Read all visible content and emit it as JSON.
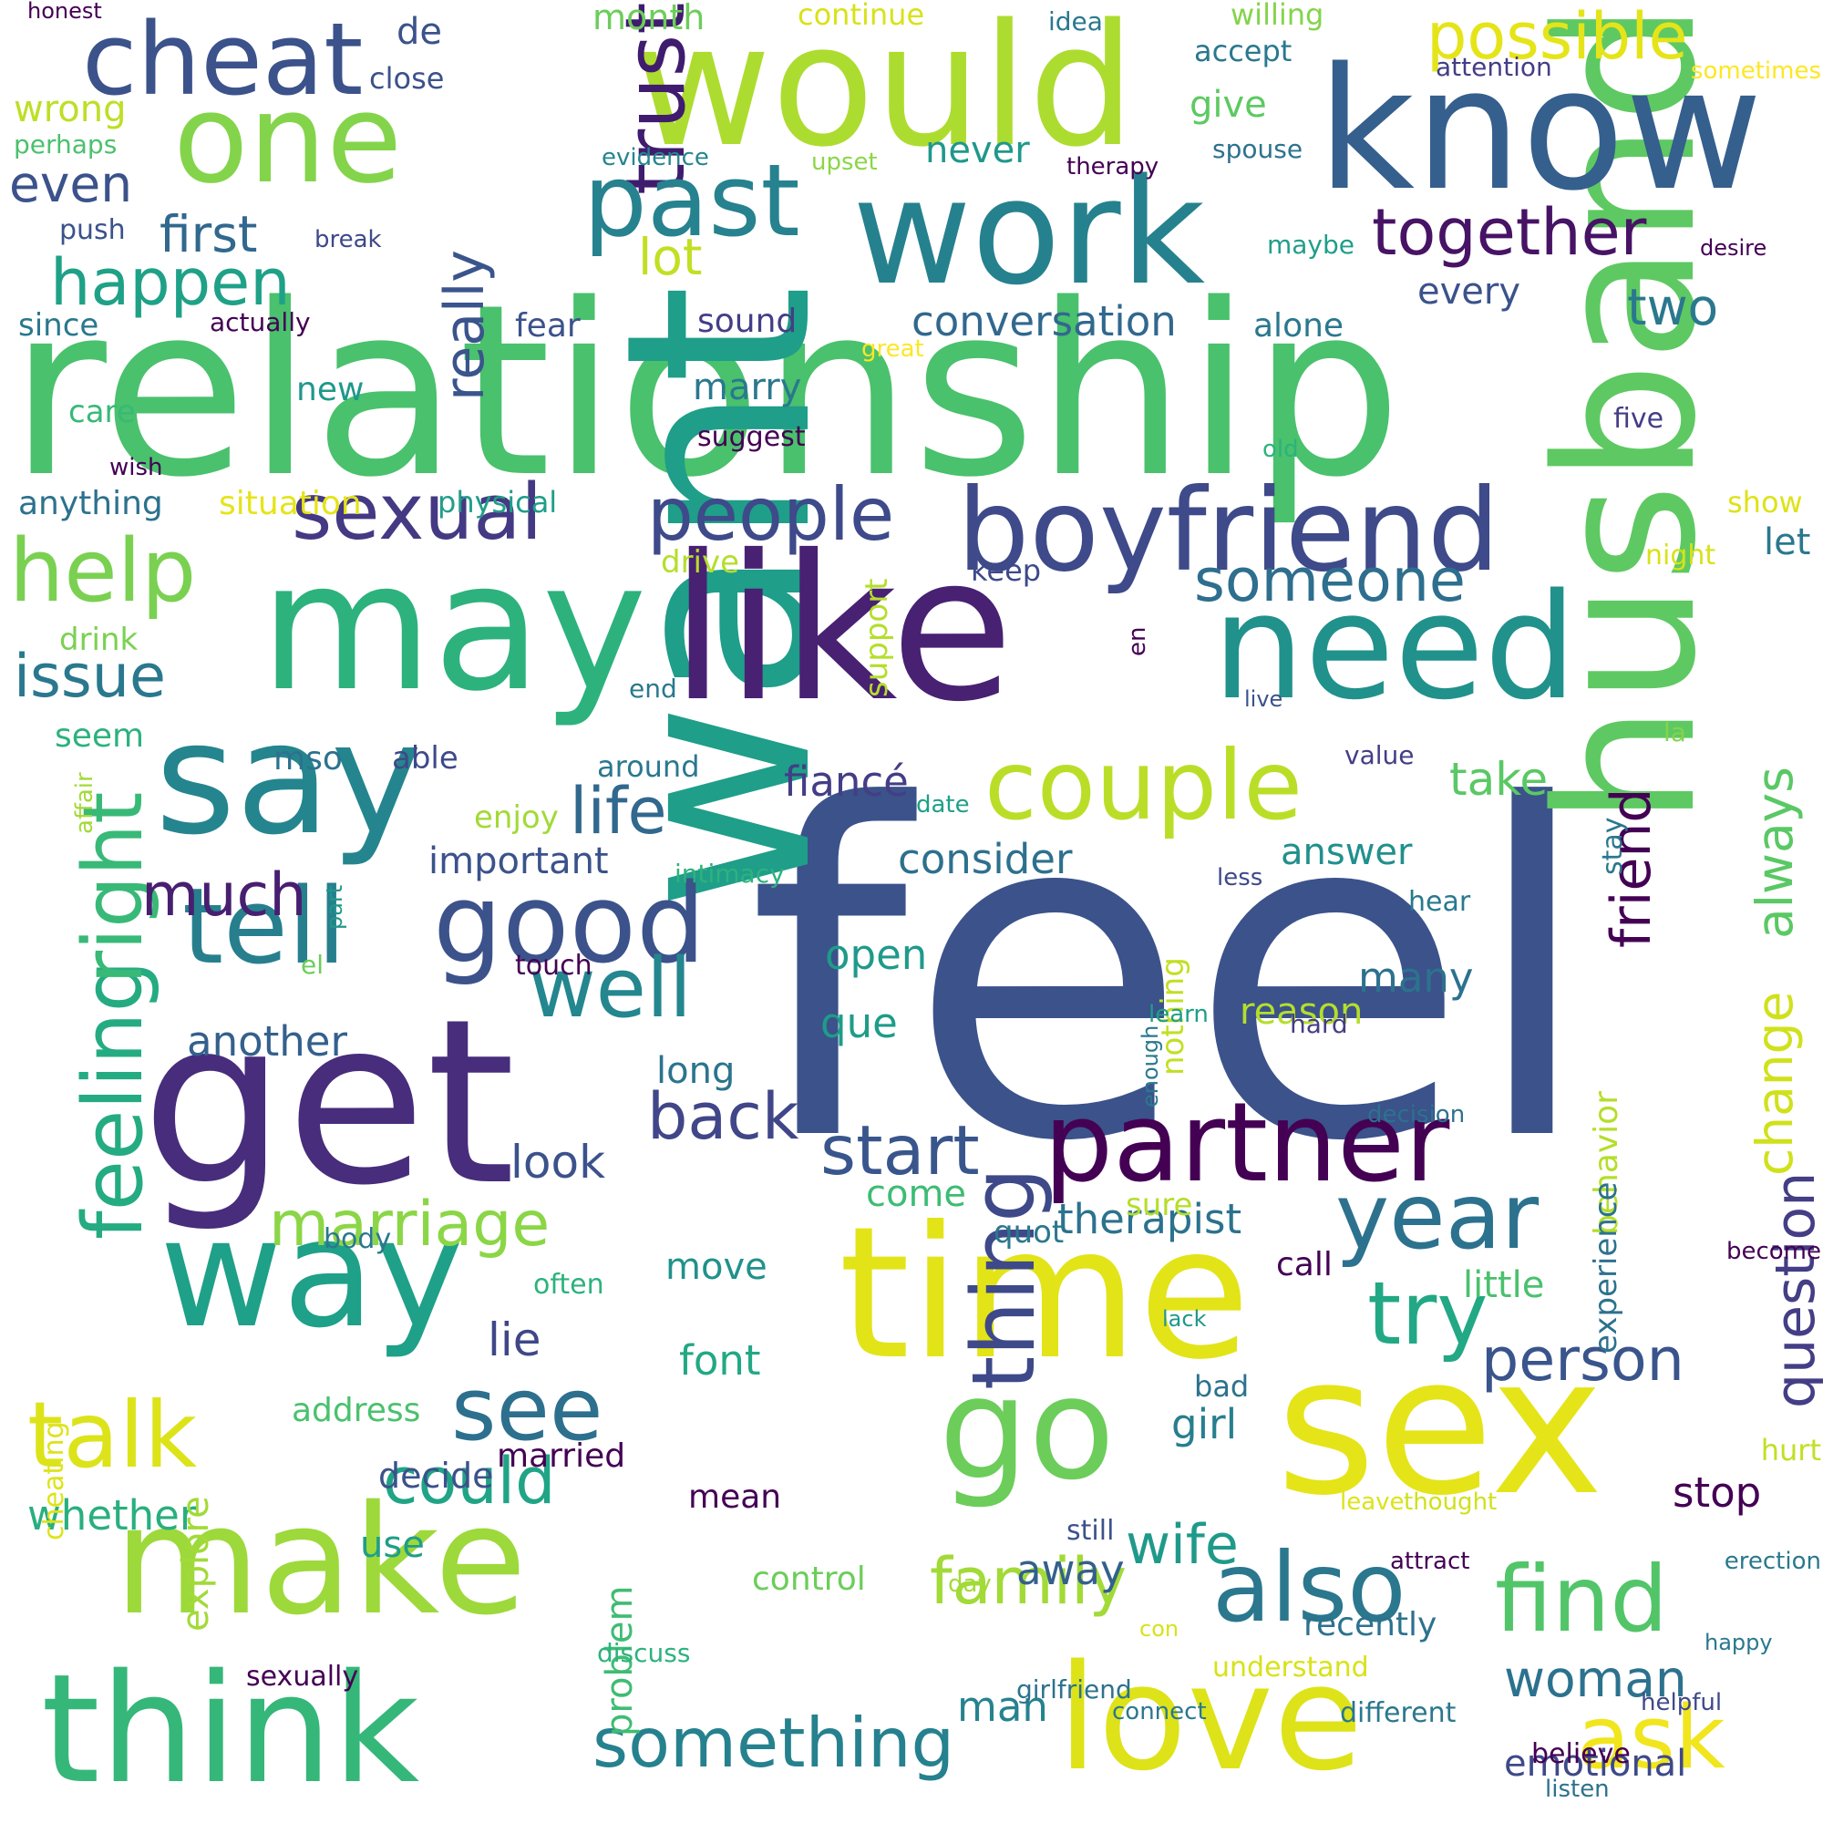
{
  "words": [
    {
      "text": "feel",
      "color": "#3b528b"
    },
    {
      "text": "relationship",
      "color": "#4ac16d"
    },
    {
      "text": "want",
      "color": "#1f9e89"
    },
    {
      "text": "like",
      "color": "#482173"
    },
    {
      "text": "get",
      "color": "#472d7b"
    },
    {
      "text": "time",
      "color": "#e2e418"
    },
    {
      "text": "husband",
      "color": "#5ec962"
    },
    {
      "text": "sex",
      "color": "#e5e419"
    },
    {
      "text": "may",
      "color": "#2db27d"
    },
    {
      "text": "would",
      "color": "#addc30"
    },
    {
      "text": "know",
      "color": "#355f8d"
    },
    {
      "text": "work",
      "color": "#26818e"
    },
    {
      "text": "say",
      "color": "#25858e"
    },
    {
      "text": "way",
      "color": "#1fa088"
    },
    {
      "text": "need",
      "color": "#21918c"
    },
    {
      "text": "make",
      "color": "#9dd93b"
    },
    {
      "text": "think",
      "color": "#35b779"
    },
    {
      "text": "love",
      "color": "#dde318"
    },
    {
      "text": "go",
      "color": "#6ccd5a"
    },
    {
      "text": "one",
      "color": "#84d44b"
    },
    {
      "text": "boyfriend",
      "color": "#3e4a89"
    },
    {
      "text": "partner",
      "color": "#440154"
    },
    {
      "text": "good",
      "color": "#3b528b"
    },
    {
      "text": "couple",
      "color": "#bade28"
    },
    {
      "text": "thing",
      "color": "#3e4989"
    },
    {
      "text": "year",
      "color": "#2c728e"
    },
    {
      "text": "tell",
      "color": "#277f8e"
    },
    {
      "text": "trust",
      "color": "#3f1c6e"
    },
    {
      "text": "cheat",
      "color": "#3b528b"
    },
    {
      "text": "past",
      "color": "#26828e"
    },
    {
      "text": "also",
      "color": "#2a778e"
    },
    {
      "text": "find",
      "color": "#52c569"
    },
    {
      "text": "ask",
      "color": "#f1e51d"
    },
    {
      "text": "try",
      "color": "#22a884"
    },
    {
      "text": "talk",
      "color": "#dce319"
    },
    {
      "text": "sexual",
      "color": "#443983"
    },
    {
      "text": "help",
      "color": "#7ad151"
    },
    {
      "text": "feeling",
      "color": "#25ab82"
    },
    {
      "text": "right",
      "color": "#38b977"
    },
    {
      "text": "see",
      "color": "#2d708e"
    },
    {
      "text": "well",
      "color": "#24868e"
    },
    {
      "text": "people",
      "color": "#3e4a89"
    },
    {
      "text": "happen",
      "color": "#1fa187"
    },
    {
      "text": "together",
      "color": "#471365"
    },
    {
      "text": "start",
      "color": "#39568c"
    },
    {
      "text": "back",
      "color": "#404688"
    },
    {
      "text": "marriage",
      "color": "#8bd646"
    },
    {
      "text": "could",
      "color": "#20a486"
    },
    {
      "text": "something",
      "color": "#26818e"
    },
    {
      "text": "family",
      "color": "#a2da37"
    },
    {
      "text": "person",
      "color": "#3a548c"
    },
    {
      "text": "question",
      "color": "#433e85"
    },
    {
      "text": "change",
      "color": "#d0e11c"
    },
    {
      "text": "always",
      "color": "#5ac864"
    },
    {
      "text": "life",
      "color": "#31688e"
    },
    {
      "text": "really",
      "color": "#3a548c"
    },
    {
      "text": "someone",
      "color": "#2e6e8e"
    },
    {
      "text": "issue",
      "color": "#2a788e"
    },
    {
      "text": "much",
      "color": "#481f70"
    },
    {
      "text": "friend",
      "color": "#440154"
    },
    {
      "text": "woman",
      "color": "#2c728e"
    },
    {
      "text": "wife",
      "color": "#1f9a8a"
    },
    {
      "text": "conversation",
      "color": "#31688e"
    },
    {
      "text": "possible",
      "color": "#e5e419"
    },
    {
      "text": "first",
      "color": "#31688e"
    },
    {
      "text": "even",
      "color": "#3b528b"
    },
    {
      "text": "lot",
      "color": "#c2df23"
    },
    {
      "text": "two",
      "color": "#2a788e"
    },
    {
      "text": "fiancé",
      "color": "#433e85"
    },
    {
      "text": "take",
      "color": "#5ac864"
    },
    {
      "text": "therapist",
      "color": "#2c728e"
    },
    {
      "text": "another",
      "color": "#34608d"
    },
    {
      "text": "look",
      "color": "#3b528b"
    },
    {
      "text": "lie",
      "color": "#3f4788"
    },
    {
      "text": "font",
      "color": "#22a884"
    },
    {
      "text": "whether",
      "color": "#29af7f"
    },
    {
      "text": "consider",
      "color": "#2d708e"
    },
    {
      "text": "open",
      "color": "#1f9a8a"
    },
    {
      "text": "que",
      "color": "#1e9c89"
    },
    {
      "text": "many",
      "color": "#2c728e"
    },
    {
      "text": "girl",
      "color": "#277f8e"
    },
    {
      "text": "stop",
      "color": "#440154"
    },
    {
      "text": "emotional",
      "color": "#3e4989"
    },
    {
      "text": "problem",
      "color": "#3fbc73"
    },
    {
      "text": "man",
      "color": "#26828e"
    },
    {
      "text": "away",
      "color": "#34608d"
    },
    {
      "text": "important",
      "color": "#3b528b"
    },
    {
      "text": "long",
      "color": "#2b748e"
    },
    {
      "text": "come",
      "color": "#3dbc74"
    },
    {
      "text": "move",
      "color": "#21918c"
    },
    {
      "text": "little",
      "color": "#4ac16d"
    },
    {
      "text": "reason",
      "color": "#b5de2b"
    },
    {
      "text": "answer",
      "color": "#21908d"
    },
    {
      "text": "let",
      "color": "#2a788e"
    },
    {
      "text": "every",
      "color": "#3b528b"
    },
    {
      "text": "never",
      "color": "#1f988b"
    },
    {
      "text": "give",
      "color": "#5ec962"
    },
    {
      "text": "marry",
      "color": "#2a788e"
    },
    {
      "text": "wrong",
      "color": "#bddf26"
    },
    {
      "text": "de",
      "color": "#3b528b"
    },
    {
      "text": "month",
      "color": "#6ccd5a"
    },
    {
      "text": "continue",
      "color": "#d8e219"
    },
    {
      "text": "willing",
      "color": "#84d44b"
    },
    {
      "text": "accept",
      "color": "#2a788e"
    },
    {
      "text": "close",
      "color": "#3b528b"
    },
    {
      "text": "perhaps",
      "color": "#4ac16d"
    },
    {
      "text": "honest",
      "color": "#440154"
    },
    {
      "text": "idea",
      "color": "#2a788e"
    },
    {
      "text": "attention",
      "color": "#433e85"
    },
    {
      "text": "sometimes",
      "color": "#fde725"
    },
    {
      "text": "evidence",
      "color": "#25858e"
    },
    {
      "text": "upset",
      "color": "#8bd646"
    },
    {
      "text": "therapy",
      "color": "#440154"
    },
    {
      "text": "spouse",
      "color": "#2c728e"
    },
    {
      "text": "push",
      "color": "#3b528b"
    },
    {
      "text": "break",
      "color": "#3e4989"
    },
    {
      "text": "maybe",
      "color": "#1f9e89"
    },
    {
      "text": "desire",
      "color": "#440154"
    },
    {
      "text": "since",
      "color": "#2a788e"
    },
    {
      "text": "actually",
      "color": "#440154"
    },
    {
      "text": "fear",
      "color": "#3b528b"
    },
    {
      "text": "sound",
      "color": "#433e85"
    },
    {
      "text": "alone",
      "color": "#2a788e"
    },
    {
      "text": "great",
      "color": "#fde725"
    },
    {
      "text": "new",
      "color": "#1f988b"
    },
    {
      "text": "care",
      "color": "#38b977"
    },
    {
      "text": "suggest",
      "color": "#440154"
    },
    {
      "text": "five",
      "color": "#433e85"
    },
    {
      "text": "old",
      "color": "#2db27d"
    },
    {
      "text": "wish",
      "color": "#440154"
    },
    {
      "text": "anything",
      "color": "#2c728e"
    },
    {
      "text": "situation",
      "color": "#e5e419"
    },
    {
      "text": "physical",
      "color": "#1f9e89"
    },
    {
      "text": "show",
      "color": "#dde318"
    },
    {
      "text": "night",
      "color": "#d8e219"
    },
    {
      "text": "drive",
      "color": "#b5de2b"
    },
    {
      "text": "keep",
      "color": "#3e4989"
    },
    {
      "text": "support",
      "color": "#b5de2b"
    },
    {
      "text": "drink",
      "color": "#7ad151"
    },
    {
      "text": "end",
      "color": "#2a788e"
    },
    {
      "text": "en",
      "color": "#440154"
    },
    {
      "text": "live",
      "color": "#3b528b"
    },
    {
      "text": "la",
      "color": "#84d44b"
    },
    {
      "text": "seem",
      "color": "#2db27d"
    },
    {
      "text": "mso",
      "color": "#2c728e"
    },
    {
      "text": "able",
      "color": "#3e4989"
    },
    {
      "text": "around",
      "color": "#2a788e"
    },
    {
      "text": "value",
      "color": "#433e85"
    },
    {
      "text": "affair",
      "color": "#a2da37"
    },
    {
      "text": "enjoy",
      "color": "#a2da37"
    },
    {
      "text": "date",
      "color": "#1fa088"
    },
    {
      "text": "stay",
      "color": "#2a788e"
    },
    {
      "text": "intimacy",
      "color": "#2db27d"
    },
    {
      "text": "less",
      "color": "#3e4989"
    },
    {
      "text": "hear",
      "color": "#2a788e"
    },
    {
      "text": "part",
      "color": "#1f988b"
    },
    {
      "text": "touch",
      "color": "#440154"
    },
    {
      "text": "el",
      "color": "#6ccd5a"
    },
    {
      "text": "hard",
      "color": "#433e85"
    },
    {
      "text": "nothing",
      "color": "#c2df23"
    },
    {
      "text": "decision",
      "color": "#2c728e"
    },
    {
      "text": "enough",
      "color": "#2a788e"
    },
    {
      "text": "learn",
      "color": "#1f9e89"
    },
    {
      "text": "sure",
      "color": "#b5de2b"
    },
    {
      "text": "quot",
      "color": "#2a788e"
    },
    {
      "text": "behavior",
      "color": "#b5de2b"
    },
    {
      "text": "address",
      "color": "#4ac16d"
    },
    {
      "text": "lack",
      "color": "#1f988b"
    },
    {
      "text": "married",
      "color": "#440154"
    },
    {
      "text": "bad",
      "color": "#2c728e"
    },
    {
      "text": "attract",
      "color": "#440154"
    },
    {
      "text": "thought",
      "color": "#d0e11c"
    },
    {
      "text": "become",
      "color": "#440154"
    },
    {
      "text": "day",
      "color": "#a2da37"
    },
    {
      "text": "hurt",
      "color": "#c2df23"
    },
    {
      "text": "helpful",
      "color": "#3e4989"
    },
    {
      "text": "connect",
      "color": "#2a788e"
    },
    {
      "text": "leave",
      "color": "#dde318"
    },
    {
      "text": "experience",
      "color": "#2c728e"
    },
    {
      "text": "often",
      "color": "#2db27d"
    },
    {
      "text": "decide",
      "color": "#3b528b"
    },
    {
      "text": "call",
      "color": "#440154"
    },
    {
      "text": "mean",
      "color": "#440154"
    },
    {
      "text": "still",
      "color": "#3b528b"
    },
    {
      "text": "use",
      "color": "#1f9e89"
    },
    {
      "text": "body",
      "color": "#2a788e"
    },
    {
      "text": "control",
      "color": "#6ccd5a"
    },
    {
      "text": "recently",
      "color": "#2c728e"
    },
    {
      "text": "con",
      "color": "#d8e219"
    },
    {
      "text": "sexually",
      "color": "#440154"
    },
    {
      "text": "cheating",
      "color": "#dde318"
    },
    {
      "text": "discuss",
      "color": "#2db27d"
    },
    {
      "text": "girlfriend",
      "color": "#2c728e"
    },
    {
      "text": "happy",
      "color": "#2a788e"
    },
    {
      "text": "understand",
      "color": "#d8e219"
    },
    {
      "text": "different",
      "color": "#2a788e"
    },
    {
      "text": "believe",
      "color": "#440154"
    },
    {
      "text": "listen",
      "color": "#2c728e"
    },
    {
      "text": "erection",
      "color": "#2a788e"
    },
    {
      "text": "explore",
      "color": "#a2da37"
    }
  ]
}
